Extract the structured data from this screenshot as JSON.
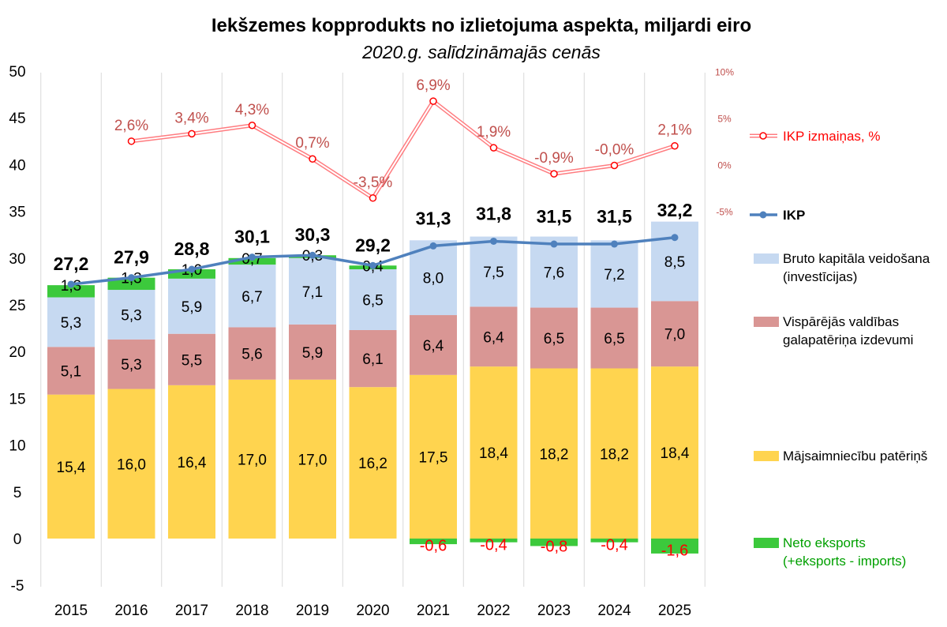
{
  "chart_data": {
    "type": "bar",
    "title": "Iekšzemes kopprodukts no izlietojuma aspekta, miljardi eiro",
    "subtitle": "2020.g. salīdzināmajās cenās",
    "categories": [
      "2015",
      "2016",
      "2017",
      "2018",
      "2019",
      "2020",
      "2021",
      "2022",
      "2023",
      "2024",
      "2025"
    ],
    "ylim": [
      -5,
      50
    ],
    "y_ticks": [
      "-5",
      "0",
      "5",
      "10",
      "15",
      "20",
      "25",
      "30",
      "35",
      "40",
      "45",
      "50"
    ],
    "y2_ticks": [
      "-5%",
      "0%",
      "5%",
      "10%"
    ],
    "stacked": true,
    "grid": "vertical",
    "legend_position": "right",
    "series": [
      {
        "name": "Mājsaimniecību patēriņš",
        "color": "#ffd44f",
        "values": [
          15.4,
          16.0,
          16.4,
          17.0,
          17.0,
          16.2,
          17.5,
          18.4,
          18.2,
          18.2,
          18.4
        ],
        "labels": [
          "15,4",
          "16,0",
          "16,4",
          "17,0",
          "17,0",
          "16,2",
          "17,5",
          "18,4",
          "18,2",
          "18,2",
          "18,4"
        ]
      },
      {
        "name": "Vispārējās valdības galapatēriņa izdevumi",
        "color": "#d99694",
        "values": [
          5.1,
          5.3,
          5.5,
          5.6,
          5.9,
          6.1,
          6.4,
          6.4,
          6.5,
          6.5,
          7.0
        ],
        "labels": [
          "5,1",
          "5,3",
          "5,5",
          "5,6",
          "5,9",
          "6,1",
          "6,4",
          "6,4",
          "6,5",
          "6,5",
          "7,0"
        ]
      },
      {
        "name": "Bruto kapitāla veidošana (investīcijas)",
        "color": "#c6d9f1",
        "values": [
          5.3,
          5.3,
          5.9,
          6.7,
          7.1,
          6.5,
          8.0,
          7.5,
          7.6,
          7.2,
          8.5
        ],
        "labels": [
          "5,3",
          "5,3",
          "5,9",
          "6,7",
          "7,1",
          "6,5",
          "8,0",
          "7,5",
          "7,6",
          "7,2",
          "8,5"
        ]
      },
      {
        "name": "Neto eksports (+eksports - imports)",
        "color": "#3cc93c",
        "values": [
          1.3,
          1.3,
          1.0,
          0.7,
          0.3,
          0.4,
          -0.6,
          -0.4,
          -0.8,
          -0.4,
          -1.6
        ],
        "labels": [
          "1,3",
          "1,3",
          "1,0",
          "0,7",
          "0,3",
          "0,4",
          "-0,6",
          "-0,4",
          "-0,8",
          "-0,4",
          "-1,6"
        ]
      }
    ],
    "line": {
      "name": "IKP",
      "color": "#4f81bd",
      "values": [
        27.2,
        27.9,
        28.8,
        30.1,
        30.3,
        29.2,
        31.3,
        31.8,
        31.5,
        31.5,
        32.2
      ],
      "labels": [
        "27,2",
        "27,9",
        "28,8",
        "30,1",
        "30,3",
        "29,2",
        "31,3",
        "31,8",
        "31,5",
        "31,5",
        "32,2"
      ]
    },
    "change_line": {
      "name": "IKP izmaiņas, %",
      "color": "#ff7c80",
      "axis": "right",
      "values": [
        null,
        2.6,
        3.4,
        4.3,
        0.7,
        -3.5,
        6.9,
        1.9,
        -0.9,
        -0.0,
        2.1
      ],
      "labels": [
        "",
        "2,6%",
        "3,4%",
        "4,3%",
        "0,7%",
        "-3,5%",
        "6,9%",
        "1,9%",
        "-0,9%",
        "-0,0%",
        "2,1%"
      ]
    },
    "legend": [
      {
        "key": "change",
        "lines": [
          "IKP izmaiņas, %"
        ],
        "color": "#ff0000"
      },
      {
        "key": "gdp",
        "lines": [
          "IKP"
        ],
        "color": "#000000"
      },
      {
        "key": "inv",
        "lines": [
          "Bruto kapitāla veidošana",
          "(investīcijas)"
        ],
        "color": "#000000"
      },
      {
        "key": "gov",
        "lines": [
          "Vispārējās valdības",
          "galapatēriņa izdevumi"
        ],
        "color": "#000000"
      },
      {
        "key": "hh",
        "lines": [
          "Mājsaimniecību patēriņš"
        ],
        "color": "#000000"
      },
      {
        "key": "net",
        "lines": [
          "Neto eksports",
          "(+eksports - imports)"
        ],
        "color": "#00a000"
      }
    ]
  }
}
